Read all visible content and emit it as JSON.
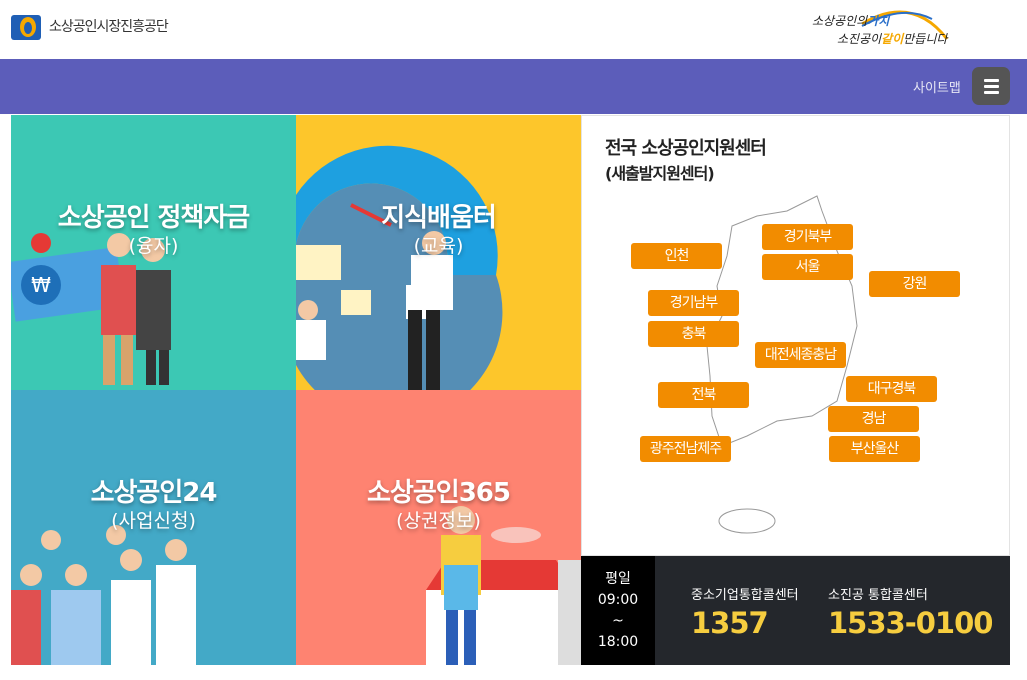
{
  "header": {
    "org_name": "소상공인시장진흥공단",
    "slogan_line1": "소상공인의",
    "slogan_line1_accent": "가치",
    "slogan_line2": "소진공이",
    "slogan_line2_accent": "같이",
    "slogan_line2_end": "만듭니다"
  },
  "nav": {
    "sitemap_label": "사이트맵",
    "menu_icon": "hamburger-icon",
    "bg_color": "#5c5dba"
  },
  "tiles": [
    {
      "title": "소상공인 정책자금",
      "subtitle": "(융자)",
      "color": "#3cc8b4"
    },
    {
      "title": "지식배움터",
      "subtitle": "(교육)",
      "color": "#fdc62b"
    },
    {
      "title": "소상공인24",
      "subtitle": "(사업신청)",
      "color": "#43a9c7"
    },
    {
      "title": "소상공인365",
      "subtitle": "(상권정보)",
      "color": "#fe8371"
    }
  ],
  "centers": {
    "title": "전국 소상공인지원센터",
    "subtitle": "(새출발지원센터)",
    "regions": [
      "인천",
      "경기북부",
      "서울",
      "강원",
      "경기남부",
      "충북",
      "대전세종충남",
      "대구경북",
      "전북",
      "경남",
      "광주전남제주",
      "부산울산"
    ]
  },
  "callbar": {
    "day": "평일",
    "open": "09:00",
    "sep": "~",
    "close": "18:00",
    "centers": [
      {
        "label": "중소기업통합콜센터",
        "number": "1357"
      },
      {
        "label": "소진공 통합콜센터",
        "number": "1533-0100"
      }
    ]
  }
}
